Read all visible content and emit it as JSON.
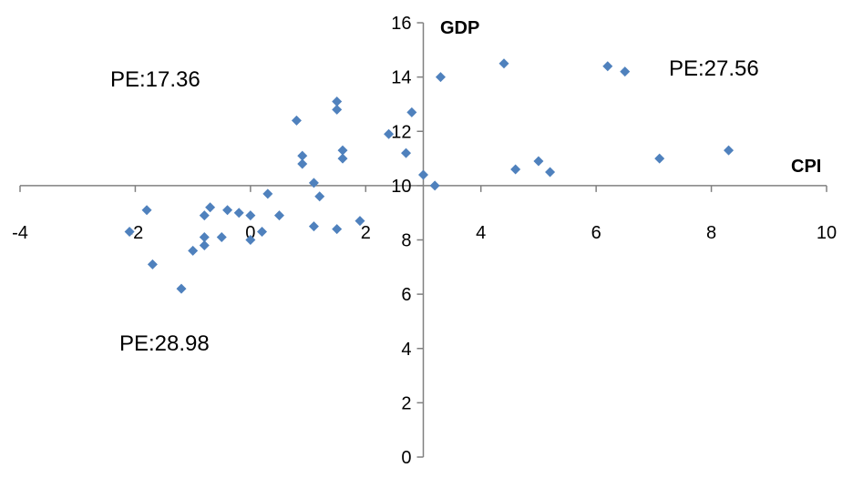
{
  "chart_data": {
    "type": "scatter",
    "xlabel": "CPI",
    "ylabel": "GDP",
    "xlim": [
      -4,
      10
    ],
    "ylim": [
      0,
      16
    ],
    "x_ticks": [
      -4,
      -2,
      0,
      2,
      4,
      6,
      8,
      10
    ],
    "y_ticks": [
      0,
      2,
      4,
      6,
      8,
      10,
      12,
      14,
      16
    ],
    "x_axis_crosses_y_at": 10,
    "y_axis_crosses_x_at": 3,
    "grid": false,
    "legend": "none",
    "marker": "diamond",
    "marker_color": "#4F81BD",
    "annotations": [
      "PE:17.36",
      "PE:27.56",
      "PE:28.98"
    ],
    "series": [
      {
        "points": [
          [
            -2.1,
            8.3
          ],
          [
            -1.8,
            9.1
          ],
          [
            -1.7,
            7.1
          ],
          [
            -1.2,
            6.2
          ],
          [
            -1.0,
            7.6
          ],
          [
            -0.8,
            8.9
          ],
          [
            -0.8,
            8.1
          ],
          [
            -0.8,
            7.8
          ],
          [
            -0.7,
            9.2
          ],
          [
            -0.5,
            8.1
          ],
          [
            -0.4,
            9.1
          ],
          [
            -0.2,
            9.0
          ],
          [
            0.0,
            8.9
          ],
          [
            0.0,
            8.0
          ],
          [
            0.2,
            8.3
          ],
          [
            0.3,
            9.7
          ],
          [
            0.5,
            8.9
          ],
          [
            0.8,
            12.4
          ],
          [
            0.9,
            11.1
          ],
          [
            0.9,
            10.8
          ],
          [
            1.1,
            10.1
          ],
          [
            1.1,
            8.5
          ],
          [
            1.2,
            9.6
          ],
          [
            1.5,
            13.1
          ],
          [
            1.5,
            12.8
          ],
          [
            1.5,
            8.4
          ],
          [
            1.6,
            11.3
          ],
          [
            1.6,
            11.0
          ],
          [
            1.9,
            8.7
          ],
          [
            2.4,
            11.9
          ],
          [
            2.7,
            11.2
          ],
          [
            2.8,
            12.7
          ],
          [
            3.0,
            10.4
          ],
          [
            3.2,
            10.0
          ],
          [
            3.3,
            14.0
          ],
          [
            4.4,
            14.5
          ],
          [
            4.6,
            10.6
          ],
          [
            5.0,
            10.9
          ],
          [
            5.2,
            10.5
          ],
          [
            6.2,
            14.4
          ],
          [
            6.5,
            14.2
          ],
          [
            7.1,
            11.0
          ],
          [
            8.3,
            11.3
          ]
        ]
      }
    ]
  }
}
